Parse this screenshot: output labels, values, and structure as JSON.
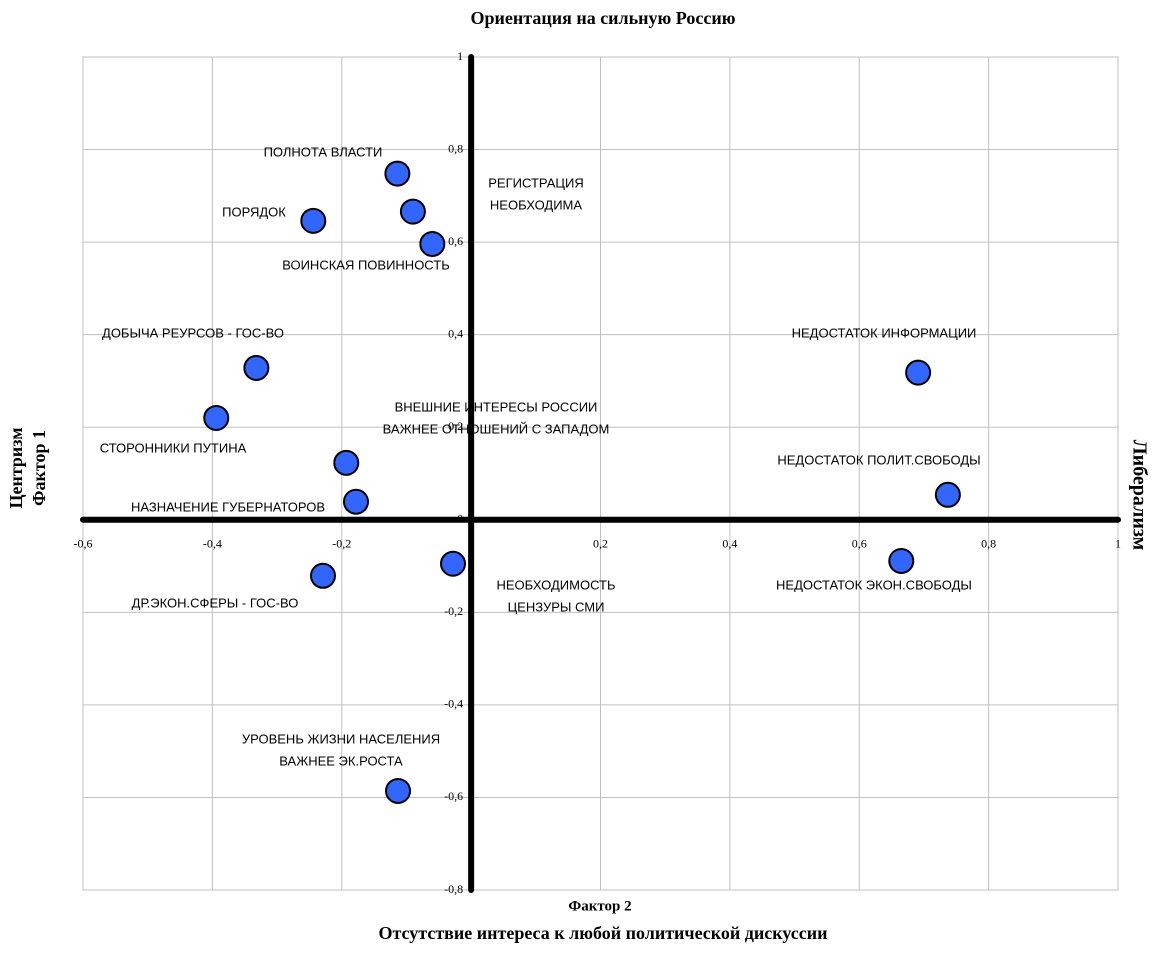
{
  "chart_data": {
    "type": "scatter",
    "title": "Ориентация на сильную Россию",
    "x_label": "Фактор 2",
    "bottom_label": "Отсутствие интереса к любой политической дискуссии",
    "y_label": "Фактор 1",
    "left_label": "Центризм",
    "right_label": "Либерализм",
    "xlim": [
      -0.6,
      1
    ],
    "ylim": [
      -0.8,
      1
    ],
    "xticks": [
      {
        "value": -0.6,
        "label": "-0,6"
      },
      {
        "value": -0.4,
        "label": "-0,4"
      },
      {
        "value": -0.2,
        "label": "-0,2"
      },
      0,
      {
        "value": 0.2,
        "label": "0,2"
      },
      {
        "value": 0.4,
        "label": "0,4"
      },
      {
        "value": 0.6,
        "label": "0,6"
      },
      {
        "value": 0.8,
        "label": "0,8"
      },
      1
    ],
    "yticks": [
      {
        "value": -0.8,
        "label": "-0,8"
      },
      {
        "value": -0.6,
        "label": "-0,6"
      },
      {
        "value": -0.4,
        "label": "-0,4"
      },
      {
        "value": -0.2,
        "label": "-0,2"
      },
      0,
      {
        "value": 0.2,
        "label": "0,2"
      },
      {
        "value": 0.4,
        "label": "0,4"
      },
      {
        "value": 0.6,
        "label": "0,6"
      },
      {
        "value": 0.8,
        "label": "0,8"
      },
      1
    ],
    "grid": true,
    "series": [
      {
        "color": "#3366ff",
        "x": [
          -0.114,
          -0.09,
          -0.06,
          -0.244,
          -0.332,
          -0.394,
          -0.193,
          -0.178,
          -0.229,
          -0.028,
          -0.113,
          0.691,
          0.737,
          0.665
        ],
        "values": [
          0.748,
          0.666,
          0.596,
          0.646,
          0.328,
          0.22,
          0.123,
          0.039,
          -0.121,
          -0.095,
          -0.586,
          0.318,
          0.054,
          -0.089
        ]
      }
    ],
    "labels": [
      [
        "ПОЛНОТА ВЛАСТИ"
      ],
      [
        "РЕГИСТРАЦИЯ",
        "НЕОБХОДИМА"
      ],
      [
        "ВОИНСКАЯ ПОВИННОСТЬ"
      ],
      [
        "ПОРЯДОК"
      ],
      [
        "ДОБЫЧА РЕУРСОВ - ГОС-ВО"
      ],
      [
        "СТОРОННИКИ ПУТИНА"
      ],
      [
        "ВНЕШНИЕ ИНТЕРЕСЫ РОССИИ",
        "ВАЖНЕЕ ОТНОШЕНИЙ С ЗАПАДОМ"
      ],
      [
        "НАЗНАЧЕНИЕ ГУБЕРНАТОРОВ"
      ],
      [
        "ДР.ЭКОН.СФЕРЫ - ГОС-ВО"
      ],
      [
        "НЕОБХОДИМОСТЬ",
        "ЦЕНЗУРЫ СМИ"
      ],
      [
        "УРОВЕНЬ ЖИЗНИ НАСЕЛЕНИЯ",
        "ВАЖНЕЕ ЭК.РОСТА"
      ],
      [
        "НЕДОСТАТОК ИНФОРМАЦИИ"
      ],
      [
        "НЕДОСТАТОК ПОЛИТ.СВОБОДЫ"
      ],
      [
        "НЕДОСТАТОК ЭКОН.СВОБОДЫ"
      ]
    ]
  }
}
